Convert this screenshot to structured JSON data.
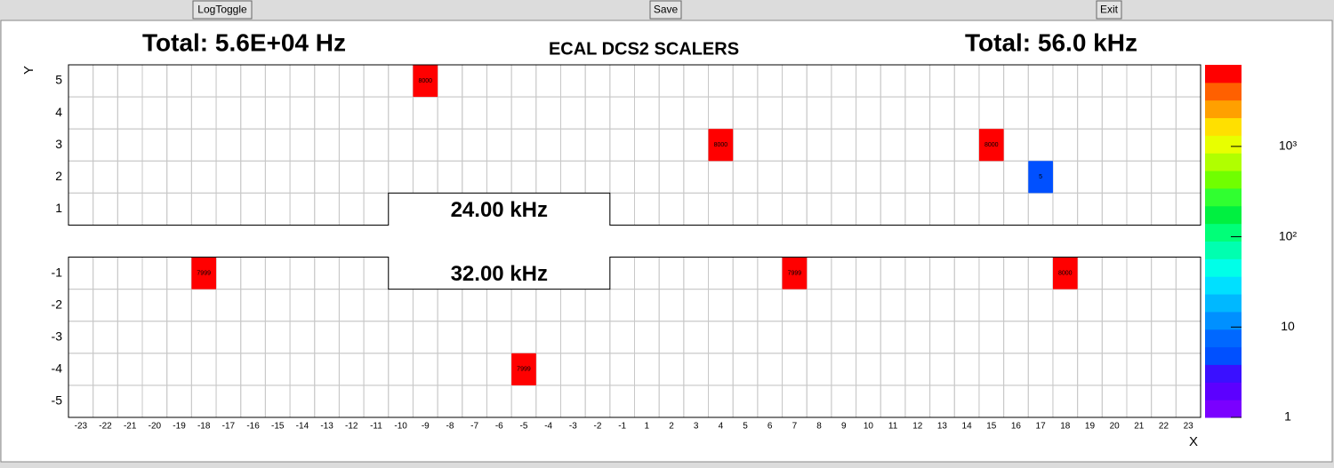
{
  "buttons": [
    "LogToggle",
    "Save",
    "Exit"
  ],
  "chart_data": {
    "type": "heatmap",
    "title": "ECAL DCS2 SCALERS",
    "total_left": "Total:  5.6E+04 Hz",
    "total_right": "Total:  56.0 kHz",
    "x_label": "X",
    "y_label": "Y",
    "x": [
      -23,
      -22,
      -21,
      -20,
      -19,
      -18,
      -17,
      -16,
      -15,
      -14,
      -13,
      -12,
      -11,
      -10,
      -9,
      -8,
      -7,
      -6,
      -5,
      -4,
      -3,
      -2,
      -1,
      1,
      2,
      3,
      4,
      5,
      6,
      7,
      8,
      9,
      10,
      11,
      12,
      13,
      14,
      15,
      16,
      17,
      18,
      19,
      20,
      21,
      22,
      23
    ],
    "y": [
      5,
      4,
      3,
      2,
      1,
      -1,
      -2,
      -3,
      -4,
      -5
    ],
    "cells": [
      {
        "x": -9,
        "y": 5,
        "value": 8000
      },
      {
        "x": 4,
        "y": 3,
        "value": 8000
      },
      {
        "x": 15,
        "y": 3,
        "value": 8000
      },
      {
        "x": 17,
        "y": 2,
        "value": 5
      },
      {
        "x": -18,
        "y": -1,
        "value": 7999
      },
      {
        "x": 7,
        "y": -1,
        "value": 7999
      },
      {
        "x": 18,
        "y": -1,
        "value": 8000
      },
      {
        "x": -5,
        "y": -4,
        "value": 7999
      }
    ],
    "region_labels": [
      "24.00 kHz",
      "32.00 kHz"
    ],
    "zlim": [
      1,
      8000
    ],
    "zlog": true,
    "zticks": [
      1,
      10,
      {
        "value": 100,
        "label": "10²"
      },
      {
        "value": 1000,
        "label": "10³"
      }
    ],
    "palette": [
      "#7a00ff",
      "#5c00ff",
      "#3a10ff",
      "#0050ff",
      "#0068ff",
      "#0090ff",
      "#00b8ff",
      "#00e0ff",
      "#00ffe8",
      "#00ffb0",
      "#00ff78",
      "#00f040",
      "#30ff30",
      "#70ff00",
      "#b0ff00",
      "#e8ff00",
      "#ffe000",
      "#ffa000",
      "#ff6000",
      "#ff0000"
    ],
    "grid": true
  }
}
